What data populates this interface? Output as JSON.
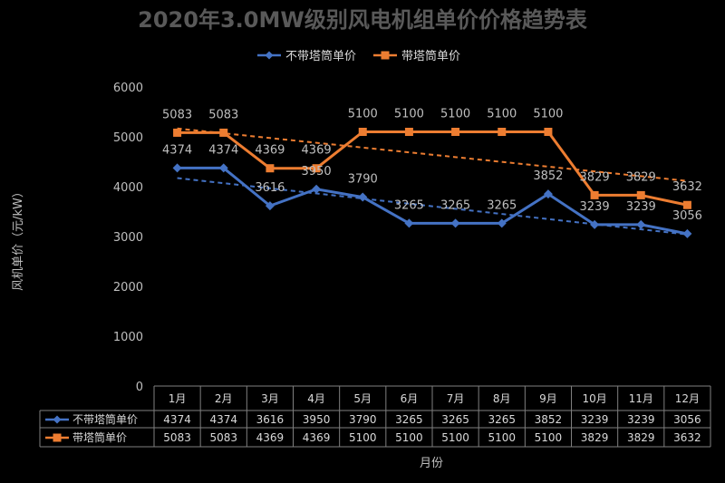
{
  "chart_data": {
    "type": "line",
    "title": "2020年3.0MW级别风电机组单价价格趋势表",
    "xlabel": "月份",
    "ylabel": "风机单价（元/kW）",
    "ylim": [
      0,
      6000
    ],
    "yticks": [
      0,
      1000,
      2000,
      3000,
      4000,
      5000,
      6000
    ],
    "grid": false,
    "legend_position": "top",
    "categories": [
      "1月",
      "2月",
      "3月",
      "4月",
      "5月",
      "6月",
      "7月",
      "8月",
      "9月",
      "10月",
      "11月",
      "12月"
    ],
    "series": [
      {
        "name": "不带塔筒单价",
        "color": "#4472c4",
        "marker": "diamond",
        "trendline": "linear",
        "values": [
          4374,
          4374,
          3616,
          3950,
          3790,
          3265,
          3265,
          3265,
          3852,
          3239,
          3239,
          3056
        ],
        "labels": [
          "4374",
          "4374",
          "3616",
          "3950",
          "3790",
          "3265",
          "3265",
          "3265",
          "3852",
          "3239",
          "3239",
          "3056"
        ]
      },
      {
        "name": "带塔筒单价",
        "color": "#ed7d31",
        "marker": "square",
        "trendline": "linear",
        "values": [
          5083,
          5083,
          4369,
          4369,
          5100,
          5100,
          5100,
          5100,
          5100,
          3829,
          3829,
          3632
        ],
        "labels": [
          "5083",
          "5083",
          "4369",
          "4369",
          "5100",
          "5100",
          "5100",
          "5100",
          "5100",
          "3829",
          "3829",
          "3632"
        ]
      }
    ],
    "data_table": true
  }
}
